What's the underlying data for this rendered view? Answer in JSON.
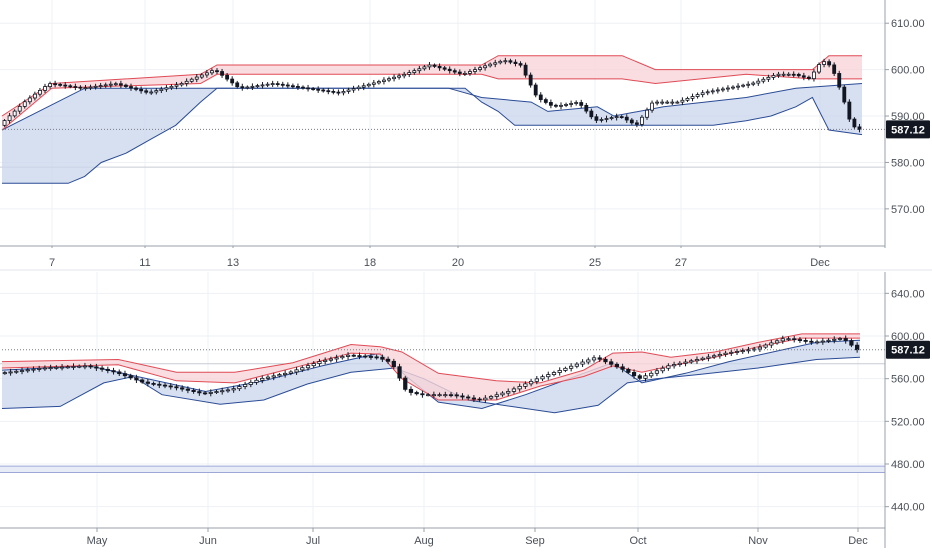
{
  "colors": {
    "background": "#ffffff",
    "grid": "#eef1f5",
    "axis_line": "#9aa0a8",
    "axis_text": "#4a4f57",
    "candle": "#131722",
    "cloud_red_fill": "#f7d5d8",
    "cloud_red_line": "#e04a55",
    "cloud_blue_fill": "#c9d6ec",
    "cloud_blue_line": "#2a4b95",
    "badge_bg": "#131722",
    "badge_text": "#ffffff"
  },
  "last_price": "587.12",
  "chart_data": [
    {
      "type": "candlestick",
      "panel": "intraday",
      "x_labels": [
        "7",
        "11",
        "13",
        "18",
        "20",
        "25",
        "27",
        "Dec"
      ],
      "y_ticks": [
        "610.00",
        "600.00",
        "590.00",
        "580.00",
        "570.00"
      ],
      "y_tick_values": [
        610,
        600,
        590,
        580,
        570
      ],
      "ylim": [
        562,
        615
      ],
      "grid": true,
      "price_series_approx": [
        [
          0,
          588
        ],
        [
          3,
          593
        ],
        [
          6,
          597
        ],
        [
          10,
          596
        ],
        [
          14,
          597
        ],
        [
          18,
          595
        ],
        [
          22,
          597
        ],
        [
          26,
          600
        ],
        [
          29,
          596
        ],
        [
          33,
          597
        ],
        [
          37,
          596
        ],
        [
          41,
          595
        ],
        [
          45,
          597
        ],
        [
          49,
          599
        ],
        [
          52,
          601
        ],
        [
          56,
          599
        ],
        [
          59,
          601
        ],
        [
          61,
          602
        ],
        [
          63,
          601
        ],
        [
          65,
          594
        ],
        [
          67,
          592
        ],
        [
          70,
          593
        ],
        [
          72,
          589
        ],
        [
          75,
          590
        ],
        [
          77,
          588
        ],
        [
          79,
          593
        ],
        [
          82,
          593
        ],
        [
          85,
          595
        ],
        [
          88,
          596
        ],
        [
          91,
          597
        ],
        [
          94,
          599
        ],
        [
          96,
          599
        ],
        [
          98,
          598
        ],
        [
          99,
          601
        ],
        [
          100,
          602
        ],
        [
          101,
          599
        ],
        [
          102,
          594
        ],
        [
          103,
          588
        ],
        [
          104,
          587.12
        ]
      ],
      "cloud_red_upper": [
        [
          0,
          590
        ],
        [
          6,
          597
        ],
        [
          24,
          599
        ],
        [
          26,
          601
        ],
        [
          58,
          601
        ],
        [
          60,
          603
        ],
        [
          75,
          603
        ],
        [
          79,
          600
        ],
        [
          90,
          600
        ],
        [
          98,
          600
        ],
        [
          100,
          603
        ],
        [
          104,
          603
        ]
      ],
      "cloud_red_lower": [
        [
          0,
          587
        ],
        [
          6,
          596
        ],
        [
          24,
          597
        ],
        [
          26,
          599
        ],
        [
          58,
          599
        ],
        [
          60,
          598
        ],
        [
          75,
          598
        ],
        [
          79,
          597
        ],
        [
          90,
          599
        ],
        [
          98,
          598
        ],
        [
          100,
          598
        ],
        [
          104,
          598
        ]
      ],
      "cloud_blue_upper": [
        [
          0,
          587
        ],
        [
          10,
          596
        ],
        [
          26,
          596
        ],
        [
          54,
          596
        ],
        [
          58,
          594
        ],
        [
          64,
          593
        ],
        [
          66,
          591
        ],
        [
          72,
          592
        ],
        [
          74,
          590
        ],
        [
          80,
          592
        ],
        [
          90,
          594
        ],
        [
          96,
          596
        ],
        [
          104,
          597
        ]
      ],
      "cloud_blue_lower": [
        [
          0,
          575.5
        ],
        [
          8,
          575.5
        ],
        [
          10,
          577
        ],
        [
          12,
          580
        ],
        [
          15,
          582
        ],
        [
          18,
          585
        ],
        [
          21,
          588
        ],
        [
          24,
          593
        ],
        [
          26,
          596
        ],
        [
          56,
          596
        ],
        [
          58,
          593
        ],
        [
          60,
          591
        ],
        [
          62,
          588
        ],
        [
          74,
          588
        ],
        [
          86,
          588
        ],
        [
          90,
          589
        ],
        [
          93,
          590
        ],
        [
          96,
          592
        ],
        [
          98,
          594
        ],
        [
          100,
          587
        ],
        [
          104,
          586
        ]
      ],
      "baseline_level": 579
    },
    {
      "type": "candlestick",
      "panel": "daily",
      "x_labels": [
        "May",
        "Jun",
        "Jul",
        "Aug",
        "Sep",
        "Oct",
        "Nov",
        "Dec"
      ],
      "y_ticks": [
        "640.00",
        "600.00",
        "560.00",
        "520.00",
        "480.00",
        "440.00"
      ],
      "y_tick_values": [
        640,
        600,
        560,
        520,
        480,
        440
      ],
      "ylim": [
        420,
        660
      ],
      "grid": true,
      "price_series_approx": [
        [
          0,
          565
        ],
        [
          6,
          570
        ],
        [
          12,
          572
        ],
        [
          16,
          566
        ],
        [
          20,
          556
        ],
        [
          24,
          552
        ],
        [
          28,
          546
        ],
        [
          32,
          550
        ],
        [
          36,
          560
        ],
        [
          40,
          566
        ],
        [
          44,
          576
        ],
        [
          48,
          582
        ],
        [
          52,
          580
        ],
        [
          54,
          575
        ],
        [
          56,
          548
        ],
        [
          58,
          545
        ],
        [
          62,
          545
        ],
        [
          66,
          540
        ],
        [
          70,
          548
        ],
        [
          74,
          560
        ],
        [
          78,
          570
        ],
        [
          82,
          580
        ],
        [
          84,
          574
        ],
        [
          86,
          568
        ],
        [
          88,
          560
        ],
        [
          92,
          572
        ],
        [
          96,
          578
        ],
        [
          100,
          584
        ],
        [
          104,
          588
        ],
        [
          108,
          598
        ],
        [
          112,
          594
        ],
        [
          116,
          598
        ],
        [
          118,
          587.12
        ]
      ],
      "cloud_red_upper": [
        [
          0,
          576
        ],
        [
          16,
          578
        ],
        [
          24,
          566
        ],
        [
          32,
          566
        ],
        [
          40,
          575
        ],
        [
          48,
          592
        ],
        [
          52,
          590
        ],
        [
          55,
          585
        ],
        [
          60,
          565
        ],
        [
          68,
          558
        ],
        [
          74,
          556
        ],
        [
          80,
          568
        ],
        [
          84,
          584
        ],
        [
          88,
          585
        ],
        [
          92,
          580
        ],
        [
          98,
          585
        ],
        [
          104,
          594
        ],
        [
          110,
          602
        ],
        [
          118,
          602
        ]
      ],
      "cloud_red_lower": [
        [
          0,
          570
        ],
        [
          16,
          573
        ],
        [
          24,
          558
        ],
        [
          32,
          556
        ],
        [
          40,
          570
        ],
        [
          48,
          584
        ],
        [
          52,
          583
        ],
        [
          55,
          560
        ],
        [
          60,
          540
        ],
        [
          68,
          540
        ],
        [
          74,
          553
        ],
        [
          80,
          562
        ],
        [
          84,
          572
        ],
        [
          88,
          566
        ],
        [
          92,
          572
        ],
        [
          98,
          580
        ],
        [
          104,
          590
        ],
        [
          110,
          598
        ],
        [
          118,
          598
        ]
      ],
      "cloud_blue_upper": [
        [
          0,
          568
        ],
        [
          12,
          572
        ],
        [
          20,
          560
        ],
        [
          28,
          548
        ],
        [
          36,
          558
        ],
        [
          44,
          572
        ],
        [
          52,
          584
        ],
        [
          56,
          560
        ],
        [
          60,
          538
        ],
        [
          66,
          532
        ],
        [
          72,
          545
        ],
        [
          80,
          565
        ],
        [
          84,
          575
        ],
        [
          88,
          556
        ],
        [
          94,
          565
        ],
        [
          100,
          576
        ],
        [
          106,
          585
        ],
        [
          112,
          594
        ],
        [
          118,
          596
        ]
      ],
      "cloud_blue_lower": [
        [
          0,
          532
        ],
        [
          8,
          534
        ],
        [
          14,
          556
        ],
        [
          18,
          562
        ],
        [
          22,
          545
        ],
        [
          30,
          536
        ],
        [
          36,
          540
        ],
        [
          42,
          555
        ],
        [
          48,
          566
        ],
        [
          54,
          570
        ],
        [
          58,
          560
        ],
        [
          64,
          540
        ],
        [
          70,
          534
        ],
        [
          76,
          528
        ],
        [
          82,
          535
        ],
        [
          86,
          556
        ],
        [
          90,
          560
        ],
        [
          96,
          564
        ],
        [
          104,
          570
        ],
        [
          112,
          578
        ],
        [
          118,
          580
        ]
      ],
      "extra_band": [
        472,
        478
      ],
      "baseline_level": 574
    }
  ]
}
